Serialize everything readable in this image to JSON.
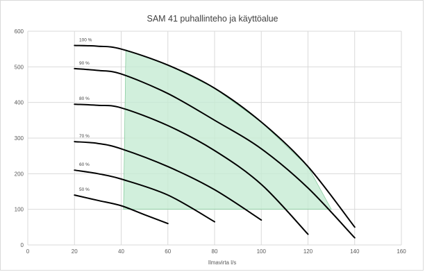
{
  "chart_data": {
    "type": "line",
    "title": "SAM 41 puhallinteho ja käyttöalue",
    "xlabel": "Ilmavirta l/s",
    "ylabel": "",
    "xlim": [
      0,
      160
    ],
    "ylim": [
      0,
      600
    ],
    "x_ticks": [
      "0",
      "20",
      "40",
      "60",
      "80",
      "100",
      "120",
      "140",
      "160"
    ],
    "y_ticks": [
      "0",
      "100",
      "200",
      "300",
      "400",
      "500",
      "600"
    ],
    "grid": true,
    "series": [
      {
        "name": "100 %",
        "x": [
          20,
          30,
          40,
          60,
          80,
          100,
          120,
          140
        ],
        "y": [
          560,
          558,
          550,
          505,
          440,
          345,
          220,
          50
        ]
      },
      {
        "name": "90 %",
        "x": [
          20,
          30,
          40,
          60,
          80,
          100,
          120,
          140
        ],
        "y": [
          495,
          490,
          480,
          425,
          350,
          270,
          160,
          20
        ]
      },
      {
        "name": "80 %",
        "x": [
          20,
          30,
          40,
          60,
          80,
          100,
          120
        ],
        "y": [
          395,
          392,
          385,
          335,
          265,
          170,
          30
        ]
      },
      {
        "name": "70 %",
        "x": [
          20,
          30,
          40,
          60,
          80,
          100
        ],
        "y": [
          290,
          285,
          270,
          220,
          155,
          70
        ]
      },
      {
        "name": "60 %",
        "x": [
          20,
          30,
          40,
          60,
          80
        ],
        "y": [
          210,
          200,
          185,
          140,
          65
        ]
      },
      {
        "name": "50 %",
        "x": [
          20,
          30,
          40,
          50,
          60
        ],
        "y": [
          140,
          125,
          110,
          85,
          60
        ]
      }
    ],
    "operating_region": {
      "x": [
        41,
        42,
        60,
        80,
        100,
        120,
        130,
        41
      ],
      "y": [
        100,
        548,
        505,
        440,
        345,
        220,
        100,
        100
      ],
      "color": "#c6ebd3"
    },
    "colors": {
      "curve": "#000000",
      "region": "#c6ebd3",
      "grid": "#d9d9d9"
    }
  }
}
